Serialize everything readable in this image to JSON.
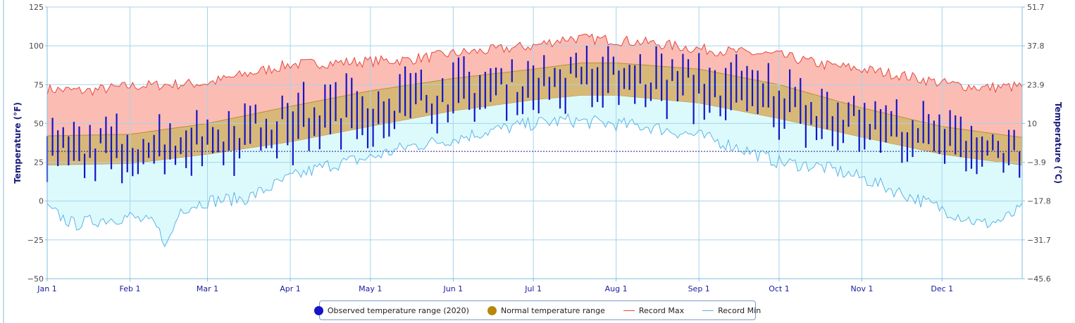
{
  "chart_data": {
    "type": "area",
    "title": "",
    "xlabel": "",
    "ylabel_left": "Temperature (°F)",
    "ylabel_right": "Temperature (°C)",
    "ylim_f": [
      -50,
      125
    ],
    "y_ticks_left": [
      "125",
      "100",
      "75",
      "50",
      "25",
      "0",
      "−25",
      "−50"
    ],
    "y_ticks_left_values": [
      125,
      100,
      75,
      50,
      25,
      0,
      -25,
      -50
    ],
    "y_ticks_right": [
      "51.7",
      "37.8",
      "23.9",
      "10",
      "−3.9",
      "−17.8",
      "−31.7",
      "−45.6"
    ],
    "x_ticks": [
      "Jan 1",
      "Feb 1",
      "Mar 1",
      "Apr 1",
      "May 1",
      "Jun 1",
      "Jul 1",
      "Aug 1",
      "Sep 1",
      "Oct 1",
      "Nov 1",
      "Dec 1"
    ],
    "x_tick_days": [
      0,
      31,
      60,
      91,
      121,
      152,
      182,
      213,
      244,
      274,
      305,
      335
    ],
    "x_days_total": 366,
    "freezing_line_f": 32,
    "grid": true,
    "legend_position": "bottom",
    "colors": {
      "observed": "#1414c8",
      "normal_fill": "#d8b878",
      "normal_dot": "#b8860b",
      "record_max_line": "#e8453c",
      "record_max_fill": "#fbbcb4",
      "record_min_line": "#5ab4e6",
      "record_min_fill": "#dcfafc",
      "grid": "#a6d4ea",
      "axis": "#7fbfdf"
    },
    "series": [
      {
        "name": "Record Max",
        "x_days": [
          0,
          15,
          31,
          45,
          60,
          75,
          91,
          105,
          121,
          135,
          152,
          165,
          182,
          195,
          210,
          225,
          244,
          258,
          274,
          290,
          305,
          320,
          335,
          350,
          365
        ],
        "values": [
          72,
          71,
          74,
          75,
          76,
          82,
          88,
          89,
          90,
          91,
          95,
          97,
          100,
          105,
          104,
          102,
          98,
          96,
          94,
          88,
          85,
          81,
          76,
          73,
          74
        ]
      },
      {
        "name": "Normal temperature range (high)",
        "x_days": [
          0,
          31,
          60,
          91,
          121,
          152,
          182,
          200,
          213,
          244,
          274,
          305,
          335,
          365
        ],
        "values": [
          42,
          43,
          50,
          61,
          71,
          79,
          85,
          89,
          89,
          85,
          75,
          60,
          48,
          41
        ]
      },
      {
        "name": "Normal temperature range (low)",
        "x_days": [
          0,
          31,
          60,
          91,
          121,
          152,
          182,
          200,
          213,
          244,
          274,
          305,
          335,
          365
        ],
        "values": [
          23,
          24,
          30,
          38,
          48,
          58,
          65,
          68,
          68,
          63,
          53,
          41,
          30,
          23
        ]
      },
      {
        "name": "Record Min",
        "x_days": [
          0,
          10,
          20,
          31,
          40,
          45,
          50,
          60,
          75,
          91,
          105,
          121,
          135,
          152,
          165,
          182,
          195,
          210,
          225,
          244,
          258,
          274,
          290,
          305,
          320,
          335,
          350,
          358,
          365
        ],
        "values": [
          -5,
          -15,
          -12,
          -10,
          -15,
          -28,
          -5,
          0,
          2,
          15,
          23,
          28,
          35,
          40,
          45,
          50,
          52,
          50,
          48,
          42,
          35,
          25,
          22,
          15,
          5,
          -5,
          -15,
          -12,
          -5
        ]
      },
      {
        "name": "Observed temperature range (2020)",
        "values": "daily high/low vertical bars, Jan–Dec 2020"
      }
    ]
  },
  "legend": {
    "observed": "Observed temperature range (2020)",
    "normal": "Normal temperature range",
    "record_max": "Record Max",
    "record_min": "Record Min"
  }
}
